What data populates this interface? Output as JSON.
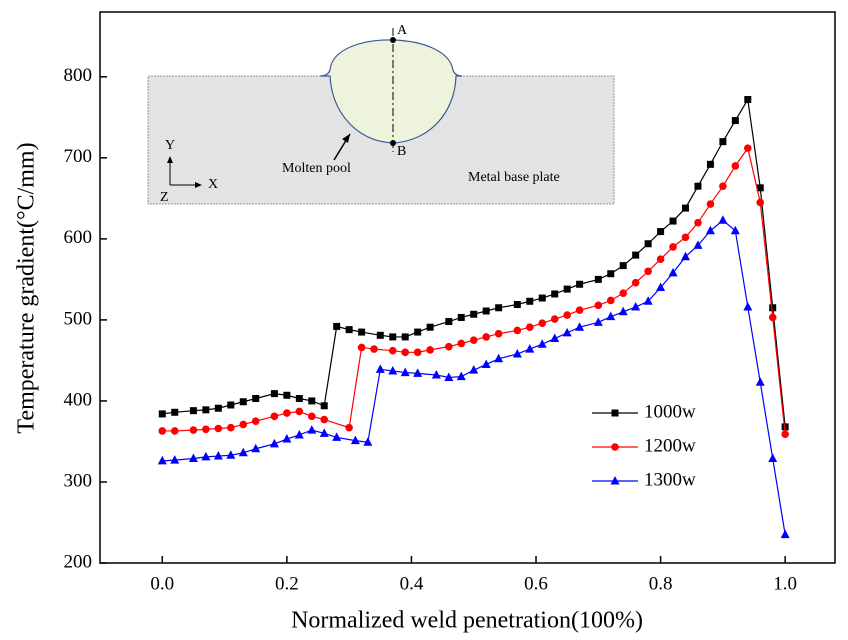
{
  "chart_data": {
    "type": "line",
    "x_label": "Normalized weld penetration(100%)",
    "y_label": "Temperature gradient(°C/mm)",
    "xlim": [
      -0.1,
      1.08
    ],
    "ylim": [
      200,
      880
    ],
    "xticks": [
      {
        "value": 0,
        "label": "0.0"
      },
      0.2,
      0.4,
      0.6,
      0.8,
      {
        "value": 1,
        "label": "1.0"
      }
    ],
    "yticks": [
      200,
      300,
      400,
      500,
      600,
      700,
      800
    ],
    "legend": "lower right",
    "series": [
      {
        "name": "1000w",
        "color": "#000000",
        "marker": "square",
        "x": [
          0,
          0.02,
          0.05,
          0.07,
          0.09,
          0.11,
          0.13,
          0.15,
          0.18,
          0.2,
          0.22,
          0.24,
          0.26,
          0.28,
          0.3,
          0.32,
          0.35,
          0.37,
          0.39,
          0.41,
          0.43,
          0.46,
          0.48,
          0.5,
          0.52,
          0.54,
          0.57,
          0.59,
          0.61,
          0.63,
          0.65,
          0.67,
          0.7,
          0.72,
          0.74,
          0.76,
          0.78,
          0.8,
          0.82,
          0.84,
          0.86,
          0.88,
          0.9,
          0.92,
          0.94,
          0.96,
          0.98,
          1.0
        ],
        "values": [
          384,
          386,
          388,
          389,
          391,
          395,
          399,
          403,
          409,
          407,
          403,
          400,
          394,
          492,
          488,
          485,
          481,
          479,
          479,
          485,
          491,
          498,
          503,
          507,
          511,
          515,
          519,
          523,
          527,
          532,
          538,
          544,
          550,
          557,
          567,
          580,
          594,
          609,
          622,
          638,
          665,
          692,
          720,
          746,
          772,
          663,
          515,
          368
        ]
      },
      {
        "name": "1200w",
        "color": "#ff0000",
        "marker": "circle",
        "x": [
          0,
          0.02,
          0.05,
          0.07,
          0.09,
          0.11,
          0.13,
          0.15,
          0.18,
          0.2,
          0.22,
          0.24,
          0.26,
          0.3,
          0.32,
          0.34,
          0.37,
          0.39,
          0.41,
          0.43,
          0.46,
          0.48,
          0.5,
          0.52,
          0.54,
          0.57,
          0.59,
          0.61,
          0.63,
          0.65,
          0.67,
          0.7,
          0.72,
          0.74,
          0.76,
          0.78,
          0.8,
          0.82,
          0.84,
          0.86,
          0.88,
          0.9,
          0.92,
          0.94,
          0.96,
          0.98,
          1.0
        ],
        "values": [
          363,
          363,
          364,
          365,
          366,
          367,
          371,
          375,
          381,
          385,
          387,
          381,
          377,
          367,
          466,
          464,
          462,
          460,
          460,
          463,
          467,
          471,
          475,
          479,
          483,
          487,
          491,
          496,
          501,
          506,
          512,
          518,
          524,
          533,
          546,
          560,
          575,
          590,
          602,
          620,
          643,
          665,
          690,
          712,
          645,
          503,
          359
        ]
      },
      {
        "name": "1300w",
        "color": "#0000ff",
        "marker": "triangle",
        "x": [
          0,
          0.02,
          0.05,
          0.07,
          0.09,
          0.11,
          0.13,
          0.15,
          0.18,
          0.2,
          0.22,
          0.24,
          0.26,
          0.28,
          0.31,
          0.33,
          0.35,
          0.37,
          0.39,
          0.41,
          0.44,
          0.46,
          0.48,
          0.5,
          0.52,
          0.54,
          0.57,
          0.59,
          0.61,
          0.63,
          0.65,
          0.67,
          0.7,
          0.72,
          0.74,
          0.76,
          0.78,
          0.8,
          0.82,
          0.84,
          0.86,
          0.88,
          0.9,
          0.92,
          0.94,
          0.96,
          0.98,
          1.0
        ],
        "values": [
          326,
          327,
          329,
          331,
          332,
          333,
          336,
          341,
          347,
          353,
          358,
          364,
          360,
          355,
          351,
          349,
          439,
          437,
          435,
          434,
          432,
          429,
          430,
          438,
          445,
          452,
          458,
          464,
          470,
          477,
          484,
          491,
          497,
          504,
          510,
          516,
          523,
          540,
          558,
          578,
          592,
          610,
          623,
          610,
          516,
          423,
          329,
          235
        ]
      }
    ],
    "inset": {
      "point_a": "A",
      "point_b": "B",
      "axis_y": "Y",
      "axis_x": "X",
      "axis_z": "Z",
      "pool_label": "Molten pool",
      "plate_label": "Metal base plate"
    }
  }
}
